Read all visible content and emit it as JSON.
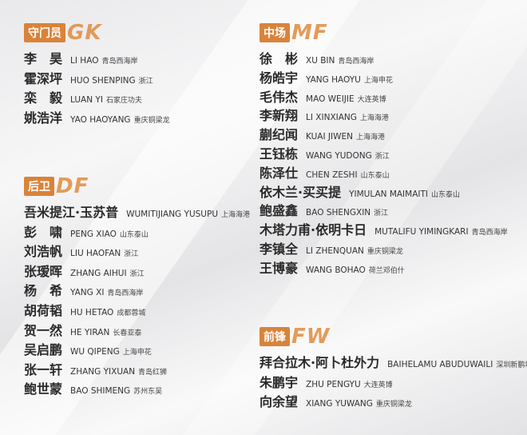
{
  "sections": [
    {
      "label": "守门员",
      "code": "GK",
      "players": [
        {
          "name": "李　昊",
          "pinyin": "LI HAO",
          "club": "青岛西海岸"
        },
        {
          "name": "霍深坪",
          "pinyin": "HUO SHENPING",
          "club": "浙江"
        },
        {
          "name": "栾　毅",
          "pinyin": "LUAN YI",
          "club": "石家庄功夫"
        },
        {
          "name": "姚浩洋",
          "pinyin": "YAO HAOYANG",
          "club": "重庆铜梁龙"
        }
      ]
    },
    {
      "label": "后卫",
      "code": "DF",
      "players": [
        {
          "name": "吾米提江·玉苏普",
          "pinyin": "WUMITIJIANG YUSUPU",
          "club": "上海海港"
        },
        {
          "name": "彭　啸",
          "pinyin": "PENG XIAO",
          "club": "山东泰山"
        },
        {
          "name": "刘浩帆",
          "pinyin": "LIU HAOFAN",
          "club": "浙江"
        },
        {
          "name": "张瑷晖",
          "pinyin": "ZHANG AIHUI",
          "club": "浙江"
        },
        {
          "name": "杨　希",
          "pinyin": "YANG XI",
          "club": "青岛西海岸"
        },
        {
          "name": "胡荷韬",
          "pinyin": "HU HETAO",
          "club": "成都蓉城"
        },
        {
          "name": "贺一然",
          "pinyin": "HE YIRAN",
          "club": "长春亚泰"
        },
        {
          "name": "吴启鹏",
          "pinyin": "WU QIPENG",
          "club": "上海申花"
        },
        {
          "name": "张一轩",
          "pinyin": "ZHANG YIXUAN",
          "club": "青岛红狮"
        },
        {
          "name": "鲍世蒙",
          "pinyin": "BAO SHIMENG",
          "club": "苏州东吴"
        }
      ]
    },
    {
      "label": "中场",
      "code": "MF",
      "players": [
        {
          "name": "徐　彬",
          "pinyin": "XU BIN",
          "club": "青岛西海岸"
        },
        {
          "name": "杨皓宇",
          "pinyin": "YANG HAOYU",
          "club": "上海申花"
        },
        {
          "name": "毛伟杰",
          "pinyin": "MAO WEIJIE",
          "club": "大连英博"
        },
        {
          "name": "李新翔",
          "pinyin": "LI XINXIANG",
          "club": "上海海港"
        },
        {
          "name": "蒯纪闻",
          "pinyin": "KUAI JIWEN",
          "club": "上海海港"
        },
        {
          "name": "王钰栋",
          "pinyin": "WANG YUDONG",
          "club": "浙江"
        },
        {
          "name": "陈泽仕",
          "pinyin": "CHEN ZESHI",
          "club": "山东泰山"
        },
        {
          "name": "依木兰·买买提",
          "pinyin": "YIMULAN MAIMAITI",
          "club": "山东泰山"
        },
        {
          "name": "鲍盛鑫",
          "pinyin": "BAO SHENGXIN",
          "club": "浙江"
        },
        {
          "name": "木塔力甫·依明卡日",
          "pinyin": "MUTALIFU YIMINGKARI",
          "club": "青岛西海岸"
        },
        {
          "name": "李镇全",
          "pinyin": "LI ZHENQUAN",
          "club": "重庆铜梁龙"
        },
        {
          "name": "王博豪",
          "pinyin": "WANG BOHAO",
          "club": "荷兰邓伯什"
        }
      ]
    },
    {
      "label": "前锋",
      "code": "FW",
      "players": [
        {
          "name": "拜合拉木·阿卜杜外力",
          "pinyin": "BAIHELAMU ABUDUWAILI",
          "club": "深圳新鹏城"
        },
        {
          "name": "朱鹏宇",
          "pinyin": "ZHU PENGYU",
          "club": "大连英博"
        },
        {
          "name": "向余望",
          "pinyin": "XIANG YUWANG",
          "club": "重庆铜梁龙"
        }
      ]
    }
  ]
}
